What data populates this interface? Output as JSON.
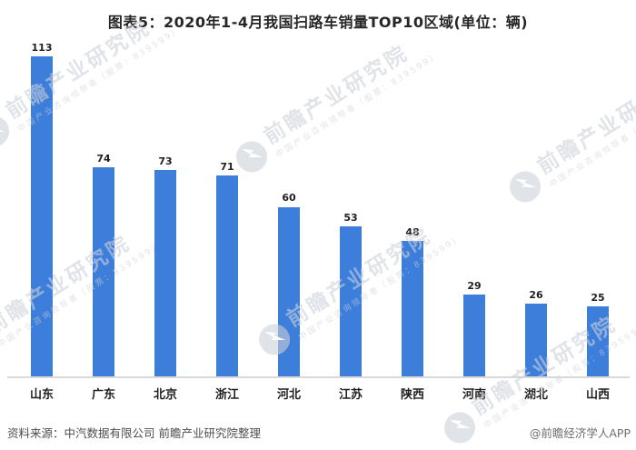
{
  "title": "图表5：2020年1-4月我国扫路车销量TOP10区域(单位：辆)",
  "chart_data": {
    "type": "bar",
    "title": "图表5：2020年1-4月我国扫路车销量TOP10区域",
    "unit": "辆",
    "categories": [
      "山东",
      "广东",
      "北京",
      "浙江",
      "河北",
      "江苏",
      "陕西",
      "河南",
      "湖北",
      "山西"
    ],
    "values": [
      113,
      74,
      73,
      71,
      60,
      53,
      48,
      29,
      26,
      25
    ],
    "xlabel": "",
    "ylabel": "",
    "ylim": [
      0,
      120
    ],
    "grid": false,
    "legend": "none",
    "data_labels": true,
    "bar_color": "#3D7EDB"
  },
  "watermark": {
    "brand": "前瞻产业研究院",
    "tagline": "中国产业咨询领导者（股票：839599）"
  },
  "footer": {
    "source": "资料来源：中汽数据有限公司 前瞻产业研究院整理",
    "credit": "@前瞻经济学人APP"
  }
}
